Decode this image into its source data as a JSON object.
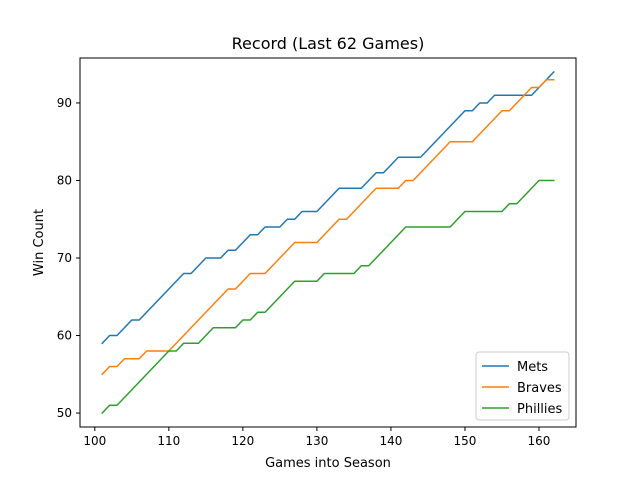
{
  "chart_data": {
    "type": "line",
    "title": "Record (Last 62 Games)",
    "xlabel": "Games into Season",
    "ylabel": "Win Count",
    "xlim": [
      98,
      165
    ],
    "ylim": [
      48.2,
      95.8
    ],
    "xticks": [
      100,
      110,
      120,
      130,
      140,
      150,
      160
    ],
    "yticks": [
      50,
      60,
      70,
      80,
      90
    ],
    "grid": false,
    "legend_position": "lower-right",
    "x": [
      101,
      102,
      103,
      104,
      105,
      106,
      107,
      108,
      109,
      110,
      111,
      112,
      113,
      114,
      115,
      116,
      117,
      118,
      119,
      120,
      121,
      122,
      123,
      124,
      125,
      126,
      127,
      128,
      129,
      130,
      131,
      132,
      133,
      134,
      135,
      136,
      137,
      138,
      139,
      140,
      141,
      142,
      143,
      144,
      145,
      146,
      147,
      148,
      149,
      150,
      151,
      152,
      153,
      154,
      155,
      156,
      157,
      158,
      159,
      160,
      161,
      162
    ],
    "series": [
      {
        "name": "Mets",
        "color": "#1f77b4",
        "values": [
          59,
          60,
          60,
          61,
          62,
          62,
          63,
          64,
          65,
          66,
          67,
          68,
          68,
          69,
          70,
          70,
          70,
          71,
          71,
          72,
          73,
          73,
          74,
          74,
          74,
          75,
          75,
          76,
          76,
          76,
          77,
          78,
          79,
          79,
          79,
          79,
          80,
          81,
          81,
          82,
          83,
          83,
          83,
          83,
          84,
          85,
          86,
          87,
          88,
          89,
          89,
          90,
          90,
          91,
          91,
          91,
          91,
          91,
          91,
          92,
          93,
          94
        ]
      },
      {
        "name": "Braves",
        "color": "#ff7f0e",
        "values": [
          55,
          56,
          56,
          57,
          57,
          57,
          58,
          58,
          58,
          58,
          59,
          60,
          61,
          62,
          63,
          64,
          65,
          66,
          66,
          67,
          68,
          68,
          68,
          69,
          70,
          71,
          72,
          72,
          72,
          72,
          73,
          74,
          75,
          75,
          76,
          77,
          78,
          79,
          79,
          79,
          79,
          80,
          80,
          81,
          82,
          83,
          84,
          85,
          85,
          85,
          85,
          86,
          87,
          88,
          89,
          89,
          90,
          91,
          92,
          92,
          93,
          93
        ]
      },
      {
        "name": "Phillies",
        "color": "#2ca02c",
        "values": [
          50,
          51,
          51,
          52,
          53,
          54,
          55,
          56,
          57,
          58,
          58,
          59,
          59,
          59,
          60,
          61,
          61,
          61,
          61,
          62,
          62,
          63,
          63,
          64,
          65,
          66,
          67,
          67,
          67,
          67,
          68,
          68,
          68,
          68,
          68,
          69,
          69,
          70,
          71,
          72,
          73,
          74,
          74,
          74,
          74,
          74,
          74,
          74,
          75,
          76,
          76,
          76,
          76,
          76,
          76,
          77,
          77,
          78,
          79,
          80,
          80,
          80
        ]
      }
    ]
  }
}
